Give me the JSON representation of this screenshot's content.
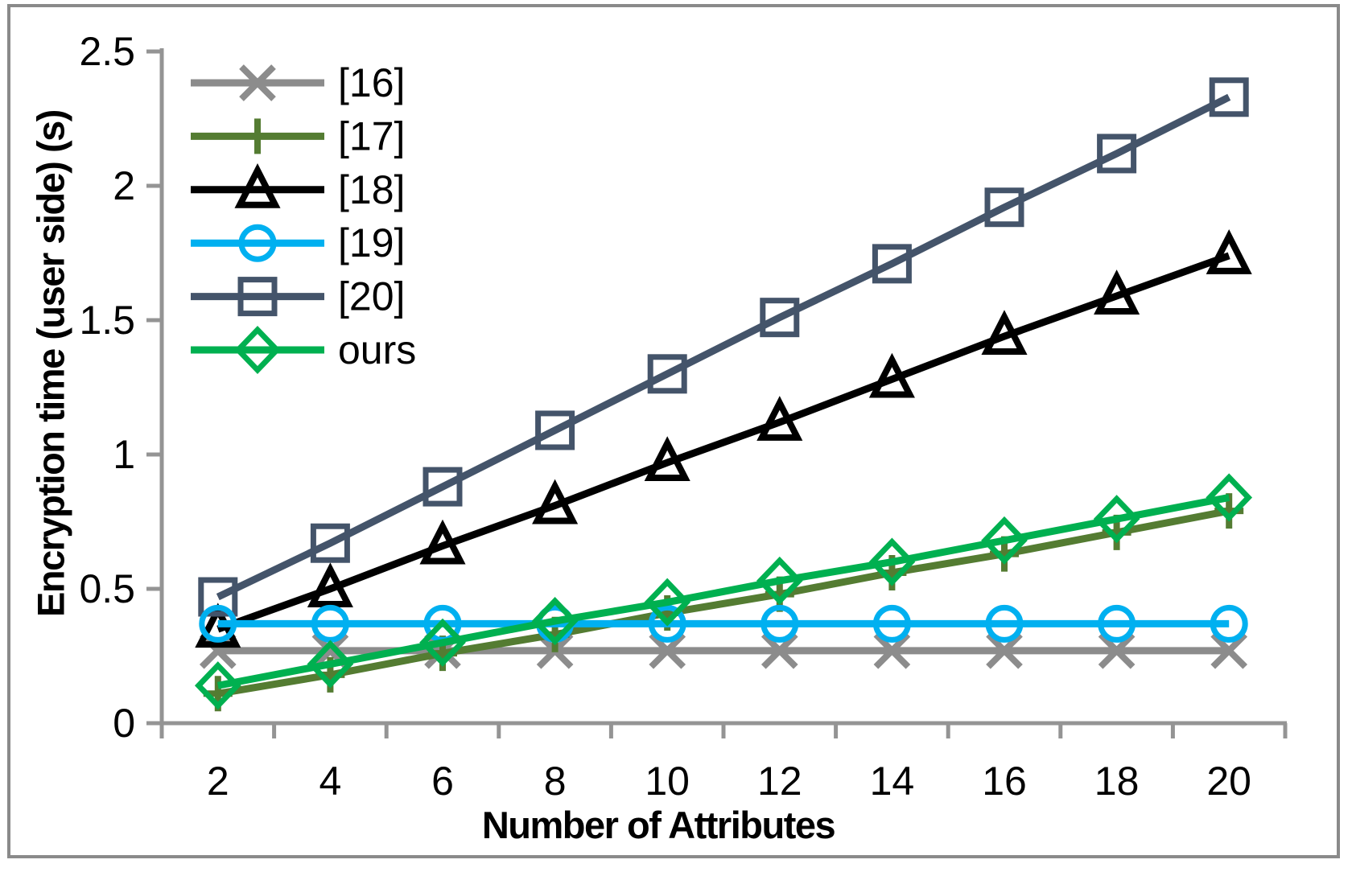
{
  "chart_data": {
    "type": "line",
    "title": "",
    "xlabel": "Number of Attributes",
    "ylabel": "Encryption time (user side) (s)",
    "x": [
      2,
      4,
      6,
      8,
      10,
      12,
      14,
      16,
      18,
      20
    ],
    "xtick_labels": [
      "2",
      "4",
      "6",
      "8",
      "10",
      "12",
      "14",
      "16",
      "18",
      "20"
    ],
    "ylim": [
      0,
      2.5
    ],
    "yticks": [
      0,
      0.5,
      1,
      1.5,
      2,
      2.5
    ],
    "ytick_labels": [
      "0",
      "0.5",
      "1",
      "1.5",
      "2",
      "2.5"
    ],
    "grid": false,
    "legend_position": "upper-left-inside",
    "axis_color": "#949494",
    "frame_color": "#8a8a8a",
    "series": [
      {
        "name": "[16]",
        "marker": "x",
        "color": "#8c8c8c",
        "zorder": 1,
        "values": [
          0.27,
          0.27,
          0.27,
          0.27,
          0.27,
          0.27,
          0.27,
          0.27,
          0.27,
          0.27
        ]
      },
      {
        "name": "[17]",
        "marker": "plus",
        "color": "#547c32",
        "zorder": 2,
        "values": [
          0.11,
          0.18,
          0.26,
          0.33,
          0.41,
          0.48,
          0.56,
          0.63,
          0.71,
          0.79
        ]
      },
      {
        "name": "[18]",
        "marker": "triangle",
        "color": "#000000",
        "zorder": 3,
        "values": [
          0.35,
          0.5,
          0.66,
          0.81,
          0.97,
          1.12,
          1.28,
          1.44,
          1.59,
          1.74
        ]
      },
      {
        "name": "[19]",
        "marker": "circle",
        "color": "#00b0f0",
        "zorder": 5,
        "values": [
          0.37,
          0.37,
          0.37,
          0.37,
          0.37,
          0.37,
          0.37,
          0.37,
          0.37,
          0.37
        ]
      },
      {
        "name": "[20]",
        "marker": "square",
        "color": "#44546a",
        "zorder": 4,
        "values": [
          0.47,
          0.67,
          0.88,
          1.09,
          1.3,
          1.51,
          1.71,
          1.92,
          2.12,
          2.33
        ]
      },
      {
        "name": "ours",
        "marker": "diamond",
        "color": "#00b050",
        "zorder": 6,
        "values": [
          0.14,
          0.22,
          0.3,
          0.38,
          0.45,
          0.53,
          0.6,
          0.68,
          0.76,
          0.84
        ]
      }
    ]
  }
}
